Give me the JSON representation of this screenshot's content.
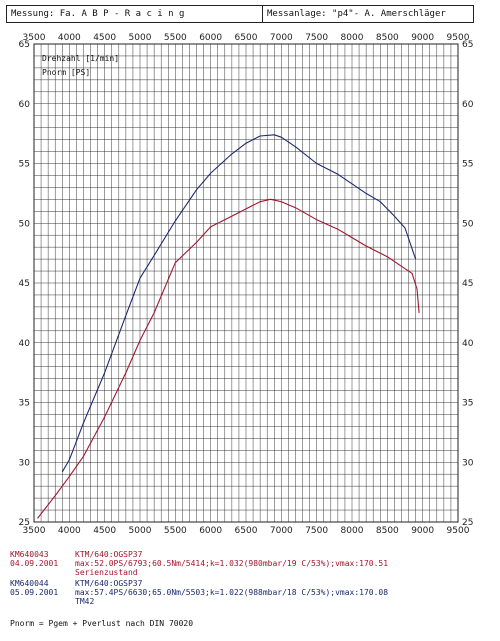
{
  "header": {
    "left_label": "Messung: Fa.  A B P - R a c i n g",
    "right_label": "Messanlage: \"p4\"- A. Amerschläger"
  },
  "legend": {
    "line1": "Drehzahl [1/min]",
    "line2": "Pnorm [PS]"
  },
  "colors": {
    "series1": "#a0162c",
    "series2": "#1c2a6e"
  },
  "footer": {
    "run1": {
      "id": "KM640043",
      "date": "04.09.2001",
      "vehicle": "KTM/640:OGSP37",
      "data": "max:52.0PS/6793;60.5Nm/5414;k=1.032(980mbar/19 C/53%);vmax:170.51",
      "note": "Serienzustand"
    },
    "run2": {
      "id": "KM640044",
      "date": "05.09.2001",
      "vehicle": "KTM/640:OGSP37",
      "data": "max:57.4PS/6630;65.0Nm/5503;k=1.022(988mbar/18 C/53%);vmax:170.08",
      "note": "TM42"
    },
    "formula": "Pnorm = Pgem + Pverlust nach DIN 70020"
  },
  "chart_data": {
    "type": "line",
    "xlim": [
      3500,
      9500
    ],
    "ylim": [
      25,
      65
    ],
    "x_ticks": [
      3500,
      4000,
      4500,
      5000,
      5500,
      6000,
      6500,
      7000,
      7500,
      8000,
      8500,
      9000,
      9500
    ],
    "y_ticks": [
      25,
      30,
      35,
      40,
      45,
      50,
      55,
      60,
      65
    ],
    "grid": true,
    "series": [
      {
        "name": "KM640043",
        "x": [
          3550,
          3800,
          4000,
          4200,
          4500,
          4800,
          5000,
          5200,
          5500,
          5800,
          6000,
          6200,
          6500,
          6700,
          6850,
          7000,
          7200,
          7500,
          7800,
          8000,
          8200,
          8500,
          8700,
          8850,
          8920,
          8950
        ],
        "y": [
          25.3,
          27.2,
          28.8,
          30.5,
          33.8,
          37.5,
          40.2,
          42.5,
          46.7,
          48.4,
          49.7,
          50.3,
          51.2,
          51.8,
          52.0,
          51.8,
          51.3,
          50.3,
          49.5,
          48.8,
          48.1,
          47.2,
          46.4,
          45.8,
          44.5,
          42.5
        ]
      },
      {
        "name": "KM640044",
        "x": [
          3900,
          4000,
          4200,
          4500,
          4800,
          5000,
          5200,
          5500,
          5800,
          6000,
          6300,
          6500,
          6700,
          6900,
          7000,
          7200,
          7500,
          7800,
          8000,
          8200,
          8400,
          8600,
          8750,
          8900
        ],
        "y": [
          29.2,
          30.2,
          33.3,
          37.5,
          42.3,
          45.4,
          47.3,
          50.2,
          52.8,
          54.2,
          55.8,
          56.7,
          57.3,
          57.4,
          57.2,
          56.4,
          55.0,
          54.1,
          53.3,
          52.5,
          51.8,
          50.6,
          49.6,
          47.0
        ]
      }
    ]
  }
}
